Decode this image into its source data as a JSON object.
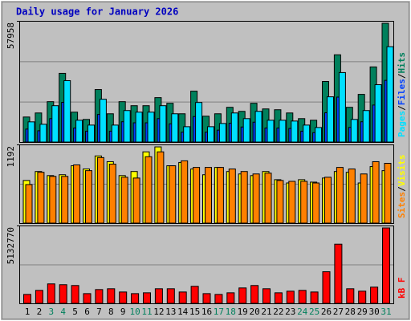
{
  "chart_data": [
    {
      "type": "bar",
      "title": "Daily usage for January 2026",
      "separator": "/",
      "ylim": [
        0,
        57958
      ],
      "yticks": [
        57958
      ],
      "series": [
        {
          "name": "Hits",
          "color": "#00805c",
          "values": [
            11978,
            13910,
            19320,
            32844,
            14297,
            10819,
            25116,
            13524,
            19320,
            17388,
            17388,
            21252,
            18547,
            13524,
            24343,
            12365,
            13524,
            16615,
            14683,
            18547,
            15842,
            15456,
            13910,
            11206,
            10433,
            28980,
            41731,
            16615,
            22798,
            35935,
            56800
          ]
        },
        {
          "name": "Files",
          "color": "#0040ff",
          "values": [
            6200,
            5400,
            11200,
            19000,
            6700,
            5200,
            13200,
            5200,
            9700,
            9200,
            9200,
            11200,
            8700,
            4700,
            12200,
            4700,
            5700,
            9000,
            7200,
            9500,
            6700,
            6700,
            6500,
            5200,
            4500,
            14000,
            21500,
            7000,
            9700,
            17700,
            29500
          ]
        },
        {
          "name": "Pages",
          "color": "#00e0ff",
          "values": [
            9660,
            8501,
            17388,
            29366,
            10433,
            8114,
            20479,
            8114,
            15070,
            14297,
            14297,
            17388,
            13524,
            7342,
            18934,
            7342,
            8887,
            13910,
            11206,
            14683,
            10433,
            10433,
            10046,
            8114,
            6955,
            21638,
            33230,
            10819,
            15070,
            27434,
            45595
          ]
        }
      ]
    },
    {
      "type": "bar",
      "separator": "/",
      "ylim": [
        0,
        1192
      ],
      "yticks": [
        1192
      ],
      "series": [
        {
          "name": "Visits",
          "color": "#ffff00",
          "values": [
            646,
            782,
            720,
            733,
            869,
            820,
            1018,
            931,
            720,
            782,
            1080,
            1155,
            869,
            919,
            820,
            733,
            844,
            782,
            745,
            720,
            782,
            658,
            608,
            658,
            621,
            683,
            782,
            770,
            608,
            857,
            795
          ]
        },
        {
          "name": "Sites",
          "color": "#ff8000",
          "values": [
            584,
            770,
            708,
            708,
            882,
            795,
            993,
            894,
            695,
            683,
            1006,
            1080,
            869,
            944,
            844,
            844,
            844,
            820,
            782,
            745,
            757,
            646,
            633,
            633,
            608,
            695,
            844,
            820,
            745,
            931,
            906
          ]
        }
      ]
    },
    {
      "type": "bar",
      "ylim": [
        0,
        5132770
      ],
      "yticks": [
        5132770
      ],
      "categories": [
        "1",
        "2",
        "3",
        "4",
        "5",
        "6",
        "7",
        "8",
        "9",
        "10",
        "11",
        "12",
        "13",
        "14",
        "15",
        "16",
        "17",
        "18",
        "19",
        "20",
        "21",
        "22",
        "23",
        "24",
        "25",
        "26",
        "27",
        "28",
        "29",
        "30",
        "31"
      ],
      "category_colors": [
        "#000000",
        "#000000",
        "#00805c",
        "#00805c",
        "#000000",
        "#000000",
        "#000000",
        "#000000",
        "#000000",
        "#00805c",
        "#00805c",
        "#000000",
        "#000000",
        "#000000",
        "#000000",
        "#000000",
        "#00805c",
        "#00805c",
        "#000000",
        "#000000",
        "#000000",
        "#000000",
        "#000000",
        "#00805c",
        "#00805c",
        "#000000",
        "#000000",
        "#000000",
        "#000000",
        "#000000",
        "#00805c"
      ],
      "series": [
        {
          "name": "kB F",
          "color": "#ff0000",
          "values": [
            588126,
            855456,
            1283184,
            1229718,
            1176252,
            641592,
            908922,
            962388,
            748524,
            641592,
            695058,
            962388,
            962388,
            748524,
            1122786,
            641592,
            588126,
            695058,
            1015854,
            1176252,
            962388,
            695058,
            801990,
            855456,
            748524,
            2085174,
            3903018,
            962388,
            801990,
            1069320,
            4972338
          ]
        }
      ]
    }
  ]
}
